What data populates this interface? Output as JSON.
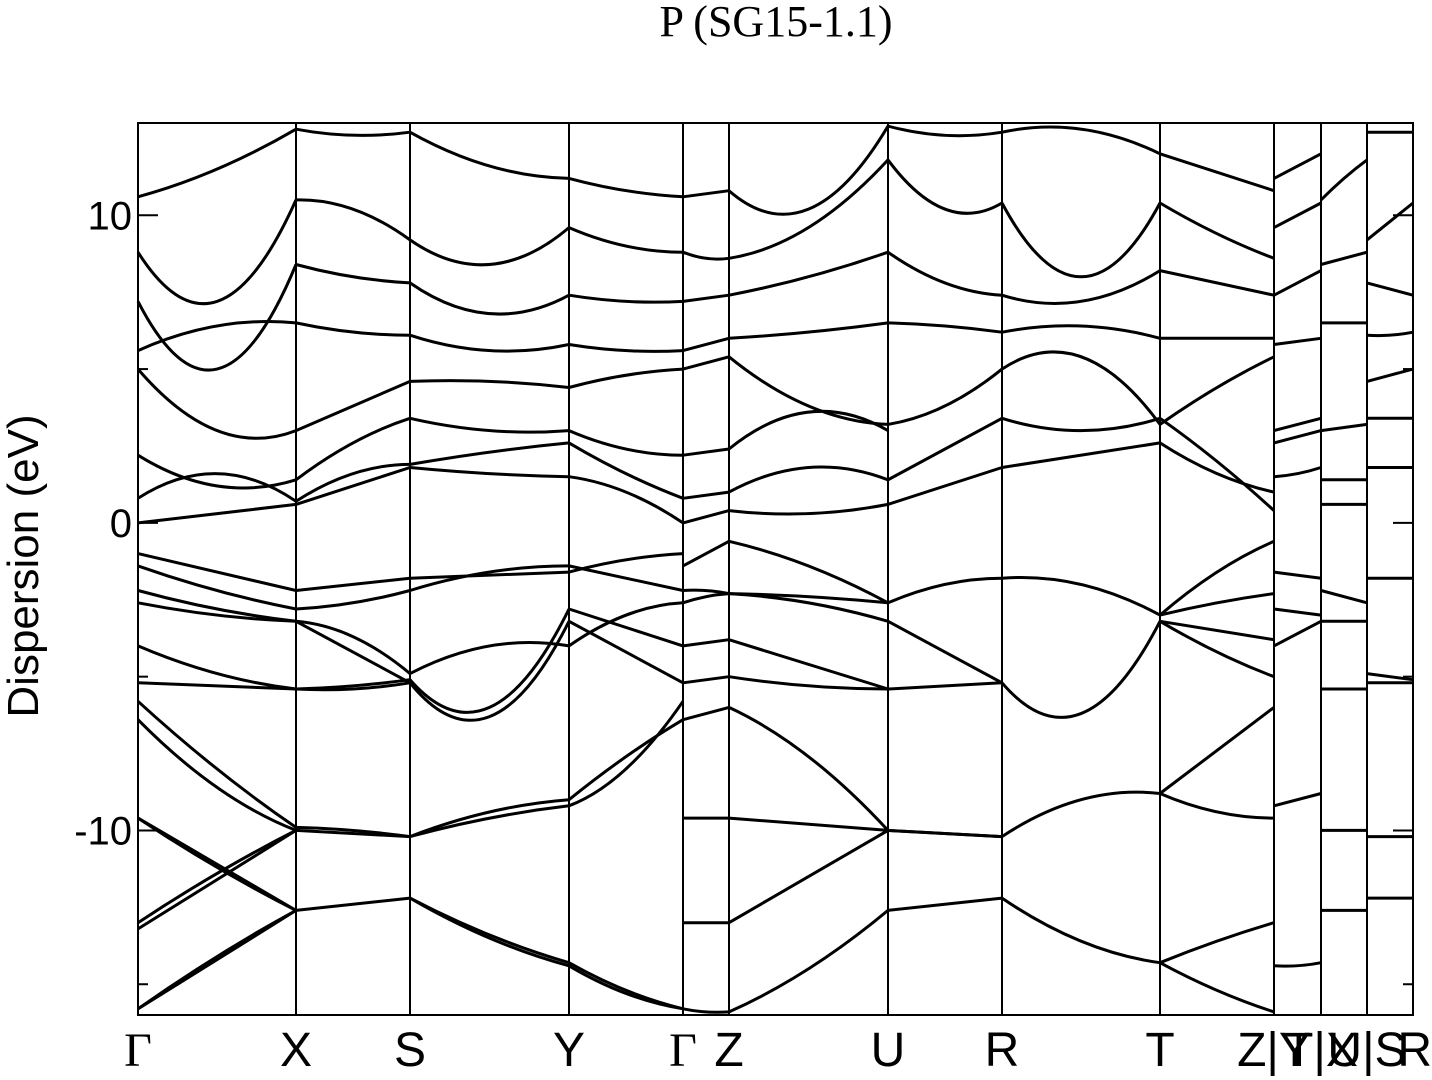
{
  "chart_data": {
    "type": "line",
    "title": "P (SG15-1.1)",
    "ylabel": "Dispersion (eV)",
    "xlabel": "",
    "ylim": [
      -16,
      13
    ],
    "yticks": [
      -10,
      0,
      10
    ],
    "path_labels": [
      "Γ",
      "X",
      "S",
      "Y",
      "Γ",
      "Z",
      "U",
      "R",
      "T",
      "Z|Y",
      "T|X",
      "U|S",
      "R"
    ],
    "grid": false,
    "legend": "none",
    "line_color": "#000000",
    "segments": [
      {
        "from": "Γ",
        "to": "X",
        "bands": [
          [
            -15.8,
            -14.2,
            -12.6
          ],
          [
            -15.8,
            -14.1,
            -12.6
          ],
          [
            -13.0,
            -11.4,
            -10.0
          ],
          [
            -13.2,
            -11.6,
            -10.0
          ],
          [
            -9.6,
            -11.1,
            -12.6
          ],
          [
            -9.6,
            -11.2,
            -12.6
          ],
          [
            -6.4,
            -8.6,
            -10.0
          ],
          [
            -5.8,
            -8.0,
            -9.9
          ],
          [
            -5.2,
            -5.3,
            -5.4
          ],
          [
            -4.0,
            -4.9,
            -5.4
          ],
          [
            -2.6,
            -3.0,
            -3.2
          ],
          [
            -2.2,
            -2.8,
            -3.2
          ],
          [
            -1.4,
            -2.2,
            -2.8
          ],
          [
            -1.0,
            -1.6,
            -2.2
          ],
          [
            0.0,
            0.3,
            0.6
          ],
          [
            0.8,
            1.6,
            0.7
          ],
          [
            2.2,
            1.2,
            1.4
          ],
          [
            5.0,
            3.0,
            3.0
          ],
          [
            5.6,
            6.4,
            6.5
          ],
          [
            7.2,
            5.0,
            8.4
          ],
          [
            8.8,
            7.2,
            10.5
          ],
          [
            10.6,
            11.5,
            12.8
          ]
        ]
      },
      {
        "from": "X",
        "to": "S",
        "bands": [
          [
            -12.6,
            -12.4,
            -12.2
          ],
          [
            -10.0,
            -10.1,
            -10.2
          ],
          [
            -9.9,
            -10.0,
            -10.2
          ],
          [
            -5.4,
            -5.4,
            -5.2
          ],
          [
            -5.4,
            -5.3,
            -5.1
          ],
          [
            -3.2,
            -4.2,
            -5.2
          ],
          [
            -3.2,
            -3.7,
            -4.9
          ],
          [
            -2.8,
            -2.6,
            -2.2
          ],
          [
            -2.2,
            -2.0,
            -1.8
          ],
          [
            0.6,
            1.2,
            1.8
          ],
          [
            0.7,
            1.6,
            1.9
          ],
          [
            1.4,
            2.6,
            3.4
          ],
          [
            3.0,
            3.8,
            4.6
          ],
          [
            6.5,
            6.2,
            6.1
          ],
          [
            8.4,
            8.0,
            7.8
          ],
          [
            10.5,
            10.2,
            9.2
          ],
          [
            12.8,
            12.6,
            12.7
          ]
        ]
      },
      {
        "from": "S",
        "to": "Y",
        "bands": [
          [
            -12.2,
            -13.4,
            -14.3
          ],
          [
            -12.2,
            -13.5,
            -14.4
          ],
          [
            -10.2,
            -9.4,
            -9.0
          ],
          [
            -10.2,
            -9.6,
            -9.2
          ],
          [
            -5.2,
            -6.3,
            -3.2
          ],
          [
            -5.1,
            -6.0,
            -2.8
          ],
          [
            -4.9,
            -4.0,
            -4.0
          ],
          [
            -2.2,
            -1.6,
            -1.4
          ],
          [
            -1.8,
            -1.7,
            -1.6
          ],
          [
            1.8,
            1.6,
            1.5
          ],
          [
            1.9,
            2.3,
            2.6
          ],
          [
            3.4,
            3.0,
            3.0
          ],
          [
            4.6,
            4.6,
            4.4
          ],
          [
            6.1,
            5.6,
            5.8
          ],
          [
            7.8,
            6.8,
            7.4
          ],
          [
            9.2,
            8.4,
            9.6
          ],
          [
            12.7,
            11.6,
            11.2
          ]
        ]
      },
      {
        "from": "Y",
        "to": "Γ",
        "bands": [
          [
            -14.3,
            -15.2,
            -15.8
          ],
          [
            -14.4,
            -15.3,
            -15.8
          ],
          [
            -9.0,
            -7.6,
            -6.4
          ],
          [
            -9.2,
            -8.0,
            -5.8
          ],
          [
            -3.2,
            -4.2,
            -5.2
          ],
          [
            -2.8,
            -3.4,
            -4.0
          ],
          [
            -4.0,
            -3.0,
            -2.6
          ],
          [
            -1.4,
            -1.8,
            -2.2
          ],
          [
            -1.6,
            -1.2,
            -1.0
          ],
          [
            1.5,
            1.0,
            0.0
          ],
          [
            2.6,
            1.6,
            0.8
          ],
          [
            3.0,
            2.4,
            2.2
          ],
          [
            4.4,
            4.8,
            5.0
          ],
          [
            5.8,
            5.6,
            5.6
          ],
          [
            7.4,
            7.2,
            7.2
          ],
          [
            9.6,
            9.0,
            8.8
          ],
          [
            11.2,
            10.8,
            10.6
          ]
        ]
      },
      {
        "from": "Γ",
        "to": "Z",
        "bands": [
          [
            -15.8,
            -15.9,
            -15.9
          ],
          [
            -13.0,
            -13.0,
            -13.0
          ],
          [
            -9.6,
            -9.6,
            -9.6
          ],
          [
            -6.4,
            -6.2,
            -6.0
          ],
          [
            -5.2,
            -5.1,
            -5.0
          ],
          [
            -4.0,
            -3.9,
            -3.8
          ],
          [
            -2.6,
            -2.4,
            -2.3
          ],
          [
            -2.2,
            -2.2,
            -2.3
          ],
          [
            -1.4,
            -1.0,
            -0.6
          ],
          [
            0.0,
            0.2,
            0.4
          ],
          [
            0.8,
            0.9,
            1.0
          ],
          [
            2.2,
            2.3,
            2.4
          ],
          [
            5.0,
            5.2,
            5.4
          ],
          [
            5.6,
            5.8,
            6.0
          ],
          [
            7.2,
            7.3,
            7.4
          ],
          [
            8.8,
            8.6,
            8.6
          ],
          [
            10.6,
            10.7,
            10.8
          ]
        ]
      },
      {
        "from": "Z",
        "to": "U",
        "bands": [
          [
            -15.9,
            -14.5,
            -12.6
          ],
          [
            -13.0,
            -11.5,
            -10.0
          ],
          [
            -9.6,
            -9.8,
            -10.0
          ],
          [
            -6.0,
            -7.6,
            -10.0
          ],
          [
            -5.0,
            -5.3,
            -5.4
          ],
          [
            -3.8,
            -4.6,
            -5.4
          ],
          [
            -2.3,
            -2.6,
            -3.2
          ],
          [
            -2.3,
            -2.4,
            -2.6
          ],
          [
            -0.6,
            -1.4,
            -2.6
          ],
          [
            0.4,
            0.3,
            0.6
          ],
          [
            1.0,
            1.8,
            1.4
          ],
          [
            2.4,
            3.6,
            3.0
          ],
          [
            5.4,
            3.8,
            3.2
          ],
          [
            6.0,
            6.2,
            6.5
          ],
          [
            7.4,
            8.0,
            8.8
          ],
          [
            8.6,
            9.6,
            11.8
          ],
          [
            10.8,
            10.2,
            12.9
          ]
        ]
      },
      {
        "from": "U",
        "to": "R",
        "bands": [
          [
            -12.6,
            -12.4,
            -12.2
          ],
          [
            -10.0,
            -10.1,
            -10.2
          ],
          [
            -10.0,
            -10.1,
            -10.2
          ],
          [
            -5.4,
            -5.3,
            -5.2
          ],
          [
            -3.2,
            -4.2,
            -5.2
          ],
          [
            -2.6,
            -2.0,
            -1.8
          ],
          [
            0.6,
            1.2,
            1.8
          ],
          [
            1.4,
            2.4,
            3.4
          ],
          [
            3.2,
            3.8,
            5.0
          ],
          [
            6.5,
            6.4,
            6.2
          ],
          [
            8.8,
            7.8,
            7.4
          ],
          [
            11.8,
            10.2,
            10.4
          ],
          [
            12.9,
            12.6,
            12.7
          ]
        ]
      },
      {
        "from": "R",
        "to": "T",
        "bands": [
          [
            -12.2,
            -13.6,
            -14.3
          ],
          [
            -10.2,
            -9.0,
            -8.8
          ],
          [
            -5.2,
            -6.2,
            -3.2
          ],
          [
            -1.8,
            -2.0,
            -3.0
          ],
          [
            1.8,
            2.2,
            2.6
          ],
          [
            3.4,
            3.0,
            3.4
          ],
          [
            5.0,
            5.4,
            3.2
          ],
          [
            6.2,
            6.4,
            6.0
          ],
          [
            7.4,
            7.2,
            8.2
          ],
          [
            10.4,
            8.0,
            10.4
          ],
          [
            12.7,
            12.8,
            12.0
          ]
        ]
      },
      {
        "from": "T",
        "to": "Z",
        "bands": [
          [
            -14.3,
            -15.2,
            -15.9
          ],
          [
            -14.3,
            -13.6,
            -13.0
          ],
          [
            -8.8,
            -9.4,
            -9.6
          ],
          [
            -8.8,
            -7.4,
            -6.0
          ],
          [
            -3.2,
            -4.2,
            -5.0
          ],
          [
            -3.2,
            -3.5,
            -3.8
          ],
          [
            -3.0,
            -2.6,
            -2.3
          ],
          [
            -3.0,
            -1.6,
            -0.6
          ],
          [
            2.6,
            1.6,
            1.0
          ],
          [
            3.4,
            2.0,
            0.4
          ],
          [
            3.2,
            4.4,
            5.4
          ],
          [
            6.0,
            6.0,
            6.0
          ],
          [
            8.2,
            7.8,
            7.4
          ],
          [
            10.4,
            9.4,
            8.6
          ],
          [
            12.0,
            11.4,
            10.8
          ]
        ]
      },
      {
        "from": "Y",
        "to": "T",
        "bands": [
          [
            -14.4,
            -14.4,
            -14.3
          ],
          [
            -9.2,
            -9.0,
            -8.8
          ],
          [
            -4.0,
            -3.6,
            -3.2
          ],
          [
            -2.8,
            -2.9,
            -3.0
          ],
          [
            -1.6,
            -1.7,
            -1.8
          ],
          [
            1.5,
            1.6,
            1.8
          ],
          [
            2.6,
            2.8,
            3.0
          ],
          [
            3.0,
            3.2,
            3.4
          ],
          [
            5.8,
            5.9,
            6.0
          ],
          [
            7.4,
            7.8,
            8.2
          ],
          [
            9.6,
            10.0,
            10.4
          ],
          [
            11.2,
            11.6,
            12.0
          ]
        ]
      },
      {
        "from": "X",
        "to": "U",
        "bands": [
          [
            -12.6,
            -12.6,
            -12.6
          ],
          [
            -10.0,
            -10.0,
            -10.0
          ],
          [
            -5.4,
            -5.4,
            -5.4
          ],
          [
            -3.2,
            -3.2,
            -3.2
          ],
          [
            -2.2,
            -2.4,
            -2.6
          ],
          [
            0.6,
            0.6,
            0.6
          ],
          [
            1.4,
            1.4,
            1.4
          ],
          [
            3.0,
            3.1,
            3.2
          ],
          [
            6.5,
            6.5,
            6.5
          ],
          [
            8.4,
            8.6,
            8.8
          ],
          [
            10.5,
            11.2,
            11.8
          ]
        ]
      },
      {
        "from": "S",
        "to": "R",
        "bands": [
          [
            -12.2,
            -12.2,
            -12.2
          ],
          [
            -10.2,
            -10.2,
            -10.2
          ],
          [
            -5.2,
            -5.2,
            -5.2
          ],
          [
            -4.9,
            -5.0,
            -5.1
          ],
          [
            -1.8,
            -1.8,
            -1.8
          ],
          [
            1.8,
            1.8,
            1.8
          ],
          [
            3.4,
            3.4,
            3.4
          ],
          [
            4.6,
            4.8,
            5.0
          ],
          [
            6.1,
            6.1,
            6.2
          ],
          [
            7.8,
            7.6,
            7.4
          ],
          [
            9.2,
            9.8,
            10.4
          ],
          [
            12.7,
            12.7,
            12.7
          ]
        ]
      }
    ]
  }
}
